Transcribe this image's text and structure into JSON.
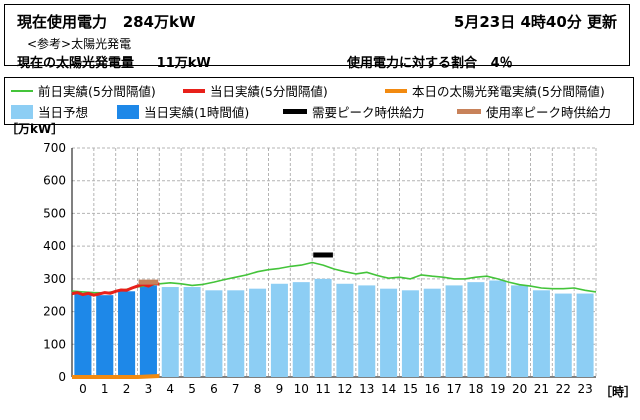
{
  "header": {
    "usage_label": "現在使用電力",
    "usage_value": "284万kW",
    "updated": "5月23日 4時40分 更新",
    "reference": "<参考>太陽光発電",
    "solar_label": "現在の太陽光発電量",
    "solar_value": "11万kW",
    "ratio_label": "使用電力に対する割合",
    "ratio_value": "4％"
  },
  "legend": [
    {
      "key": "prev_day",
      "label": "前日実績(5分間隔値)",
      "color": "#44c43a"
    },
    {
      "key": "today_5min",
      "label": "当日実績(5分間隔値)",
      "color": "#e8201a"
    },
    {
      "key": "solar",
      "label": "本日の太陽光発電実績(5分間隔値)",
      "color": "#f28a10"
    },
    {
      "key": "forecast",
      "label": "当日予想",
      "color": "#8dcef4"
    },
    {
      "key": "today_hourly",
      "label": "当日実績(1時間値)",
      "color": "#1e88e8"
    },
    {
      "key": "peak_demand",
      "label": "需要ピーク時供給力",
      "color": "#000000"
    },
    {
      "key": "peak_usage",
      "label": "使用率ピーク時供給力",
      "color": "#c8825a"
    }
  ],
  "chart_data": {
    "type": "bar",
    "ylabel": "［万kW］",
    "xlabel": "［時］",
    "ylim": [
      0,
      700
    ],
    "yticks": [
      0,
      100,
      200,
      300,
      400,
      500,
      600,
      700
    ],
    "grid": true,
    "categories": [
      "0",
      "1",
      "2",
      "3",
      "4",
      "5",
      "6",
      "7",
      "8",
      "9",
      "10",
      "11",
      "12",
      "13",
      "14",
      "15",
      "16",
      "17",
      "18",
      "19",
      "20",
      "21",
      "22",
      "23"
    ],
    "series": [
      {
        "name": "当日予想",
        "values": [
          250,
          250,
          255,
          265,
          275,
          275,
          265,
          265,
          270,
          285,
          290,
          300,
          285,
          280,
          270,
          265,
          270,
          280,
          290,
          295,
          280,
          265,
          255,
          255
        ]
      },
      {
        "name": "当日実績(1時間値)",
        "values": [
          255,
          250,
          262,
          280,
          null,
          null,
          null,
          null,
          null,
          null,
          null,
          null,
          null,
          null,
          null,
          null,
          null,
          null,
          null,
          null,
          null,
          null,
          null,
          null
        ]
      }
    ],
    "lines": [
      {
        "name": "前日実績(5分間隔値)",
        "x": [
          0,
          0.5,
          1,
          1.5,
          2,
          2.5,
          3,
          3.5,
          4,
          4.5,
          5,
          5.5,
          6,
          6.5,
          7,
          7.5,
          8,
          8.5,
          9,
          9.5,
          10,
          10.5,
          11,
          11.5,
          12,
          12.5,
          13,
          13.5,
          14,
          14.5,
          15,
          15.5,
          16,
          16.5,
          17,
          17.5,
          18,
          18.5,
          19,
          19.5,
          20,
          20.5,
          21,
          21.5,
          22,
          22.5,
          23,
          23.5,
          24
        ],
        "y": [
          263,
          260,
          258,
          257,
          262,
          268,
          275,
          280,
          285,
          288,
          285,
          280,
          283,
          290,
          298,
          305,
          312,
          322,
          328,
          332,
          338,
          342,
          350,
          342,
          330,
          322,
          315,
          320,
          310,
          302,
          305,
          300,
          312,
          308,
          305,
          300,
          300,
          305,
          308,
          300,
          290,
          282,
          278,
          272,
          270,
          270,
          272,
          265,
          260
        ]
      },
      {
        "name": "当日実績(5分間隔値)",
        "x": [
          0,
          0.25,
          0.5,
          0.75,
          1,
          1.25,
          1.5,
          1.75,
          2,
          2.25,
          2.5,
          2.75,
          3,
          3.25,
          3.5,
          3.75,
          4
        ],
        "y": [
          255,
          258,
          252,
          256,
          250,
          254,
          258,
          256,
          262,
          266,
          265,
          272,
          278,
          283,
          278,
          286,
          284
        ]
      },
      {
        "name": "本日の太陽光発電実績(5分間隔値)",
        "x": [
          0,
          1,
          2,
          3,
          4
        ],
        "y": [
          0,
          0,
          0,
          0,
          3
        ]
      }
    ],
    "markers": [
      {
        "name": "需要ピーク時供給力",
        "x": 11,
        "y": 373
      },
      {
        "name": "使用率ピーク時供給力",
        "x": 3,
        "y": 290
      }
    ]
  }
}
